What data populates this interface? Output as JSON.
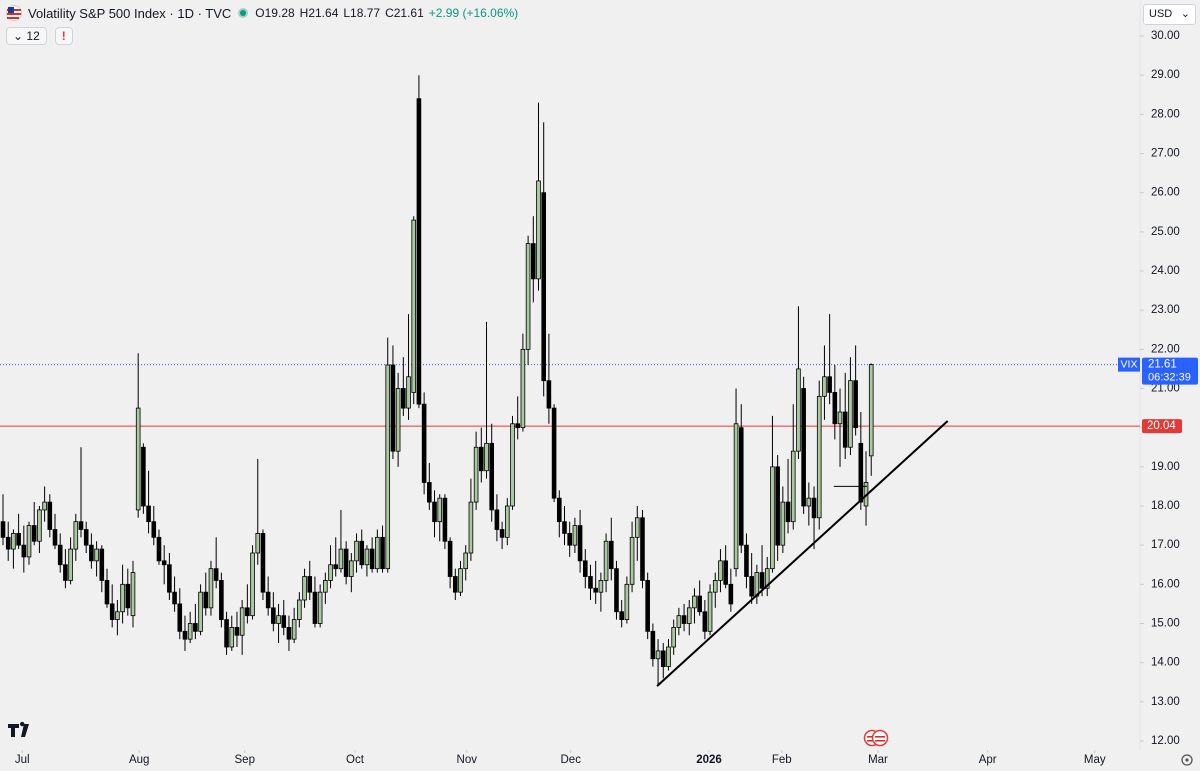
{
  "chart_data": {
    "type": "candlestick",
    "title": "Volatility S&P 500 Index · 1D · TVC",
    "legend": [
      "O19.28",
      "H21.64",
      "L18.77",
      "C21.61",
      "+2.99 (+16.06%)"
    ],
    "indicator_count": 12,
    "currency": "USD",
    "countdown": "06:32:39",
    "xlim": [
      -0.58,
      218.7
    ],
    "ylim": [
      11.77,
      30.92
    ],
    "xticks": [
      {
        "value": 3.7,
        "label": "Jul"
      },
      {
        "value": 26.2,
        "label": "Aug"
      },
      {
        "value": 46.5,
        "label": "Sep"
      },
      {
        "value": 67.7,
        "label": "Oct"
      },
      {
        "value": 89.2,
        "label": "Nov"
      },
      {
        "value": 109.2,
        "label": "Dec"
      },
      {
        "value": 135.8,
        "label": "2026"
      },
      {
        "value": 149.8,
        "label": "Feb"
      },
      {
        "value": 168.3,
        "label": "Mar"
      },
      {
        "value": 189.4,
        "label": "Apr"
      },
      {
        "value": 210,
        "label": "May"
      }
    ],
    "yticks": [
      {
        "value": 12,
        "label": "12.00"
      },
      {
        "value": 13,
        "label": "13.00"
      },
      {
        "value": 14,
        "label": "14.00"
      },
      {
        "value": 15,
        "label": "15.00"
      },
      {
        "value": 16,
        "label": "16.00"
      },
      {
        "value": 17,
        "label": "17.00"
      },
      {
        "value": 18,
        "label": "18.00"
      },
      {
        "value": 19,
        "label": "19.00"
      },
      {
        "value": 20,
        "label": "20.00"
      },
      {
        "value": 21,
        "label": "21.00"
      },
      {
        "value": 22,
        "label": "22.00"
      },
      {
        "value": 23,
        "label": "23.00"
      },
      {
        "value": 24,
        "label": "24.00"
      },
      {
        "value": 25,
        "label": "25.00"
      },
      {
        "value": 26,
        "label": "26.00"
      },
      {
        "value": 27,
        "label": "27.00"
      },
      {
        "value": 28,
        "label": "28.00"
      },
      {
        "value": 29,
        "label": "29.00"
      },
      {
        "value": 30,
        "label": "30.00"
      }
    ],
    "hline": {
      "value": 20.04,
      "color": "#e53935"
    },
    "last_price_color": "#2962ff",
    "trendline": {
      "x": [
        125.8,
        181.7
      ],
      "y": [
        13.4,
        20.17
      ],
      "color": "#000000"
    },
    "segment": {
      "x": [
        159.8,
        166.2
      ],
      "y": [
        18.5,
        18.5
      ],
      "color": "#000000"
    },
    "series": [
      {
        "name": "VIX",
        "up_color": "#a9c9a0",
        "down_color": "#000000",
        "values": [
          [
            17.6,
            18.3,
            17.0,
            17.2
          ],
          [
            17.2,
            17.6,
            16.6,
            16.9
          ],
          [
            16.9,
            17.4,
            16.4,
            17.3
          ],
          [
            17.3,
            17.8,
            16.9,
            17.0
          ],
          [
            17.0,
            17.5,
            16.3,
            16.7
          ],
          [
            16.7,
            17.6,
            16.5,
            17.5
          ],
          [
            17.5,
            18.1,
            17.0,
            17.1
          ],
          [
            17.1,
            18.0,
            16.8,
            17.9
          ],
          [
            17.9,
            18.5,
            17.6,
            18.1
          ],
          [
            18.1,
            18.3,
            17.2,
            17.4
          ],
          [
            17.4,
            17.8,
            16.9,
            17.0
          ],
          [
            17.0,
            17.3,
            16.3,
            16.5
          ],
          [
            16.5,
            16.9,
            15.9,
            16.1
          ],
          [
            16.1,
            17.2,
            16.0,
            16.9
          ],
          [
            16.9,
            17.8,
            16.6,
            17.6
          ],
          [
            17.6,
            19.5,
            17.2,
            17.4
          ],
          [
            17.4,
            17.6,
            16.8,
            17.0
          ],
          [
            17.0,
            17.3,
            16.4,
            16.6
          ],
          [
            16.6,
            17.1,
            16.2,
            16.9
          ],
          [
            16.9,
            17.0,
            15.8,
            16.1
          ],
          [
            16.1,
            16.4,
            15.4,
            15.5
          ],
          [
            15.5,
            16.0,
            14.9,
            15.1
          ],
          [
            15.1,
            15.6,
            14.7,
            15.3
          ],
          [
            15.3,
            16.5,
            15.0,
            16.0
          ],
          [
            16.0,
            16.4,
            15.2,
            15.4
          ],
          [
            15.2,
            16.6,
            14.9,
            16.3
          ],
          [
            17.9,
            21.9,
            17.7,
            20.5
          ],
          [
            19.5,
            19.6,
            17.8,
            18.0
          ],
          [
            18.0,
            18.9,
            17.3,
            17.6
          ],
          [
            17.6,
            18.0,
            17.0,
            17.2
          ],
          [
            17.2,
            17.4,
            16.5,
            16.6
          ],
          [
            16.6,
            17.0,
            16.0,
            16.5
          ],
          [
            16.5,
            16.8,
            15.6,
            15.8
          ],
          [
            15.8,
            16.2,
            15.3,
            15.5
          ],
          [
            15.5,
            15.9,
            14.6,
            14.8
          ],
          [
            14.8,
            15.2,
            14.3,
            14.6
          ],
          [
            14.6,
            15.3,
            14.5,
            15.0
          ],
          [
            15.0,
            15.5,
            14.6,
            14.8
          ],
          [
            14.8,
            16.0,
            14.7,
            15.8
          ],
          [
            15.8,
            16.3,
            15.2,
            15.4
          ],
          [
            15.4,
            16.6,
            15.2,
            16.4
          ],
          [
            16.4,
            17.2,
            15.9,
            16.1
          ],
          [
            16.1,
            16.3,
            14.9,
            15.1
          ],
          [
            15.1,
            15.3,
            14.2,
            14.4
          ],
          [
            14.4,
            15.2,
            14.3,
            14.9
          ],
          [
            14.9,
            15.3,
            14.4,
            14.7
          ],
          [
            14.7,
            15.6,
            14.2,
            15.4
          ],
          [
            15.4,
            16.0,
            15.0,
            15.2
          ],
          [
            15.2,
            17.0,
            15.1,
            16.8
          ],
          [
            16.8,
            19.2,
            16.5,
            17.3
          ],
          [
            17.3,
            17.4,
            15.6,
            15.8
          ],
          [
            15.8,
            16.2,
            15.2,
            15.4
          ],
          [
            15.4,
            15.8,
            14.8,
            15.0
          ],
          [
            15.0,
            15.5,
            14.5,
            15.2
          ],
          [
            15.2,
            15.6,
            14.7,
            14.9
          ],
          [
            14.9,
            15.2,
            14.3,
            14.6
          ],
          [
            14.6,
            15.4,
            14.5,
            15.1
          ],
          [
            15.1,
            15.8,
            14.9,
            15.6
          ],
          [
            15.6,
            16.4,
            15.4,
            16.2
          ],
          [
            16.2,
            16.6,
            15.6,
            15.8
          ],
          [
            15.8,
            16.2,
            14.9,
            15.0
          ],
          [
            15.0,
            16.0,
            14.9,
            15.8
          ],
          [
            15.8,
            16.3,
            15.5,
            16.1
          ],
          [
            16.1,
            17.0,
            15.9,
            16.5
          ],
          [
            16.5,
            17.2,
            16.2,
            16.4
          ],
          [
            16.4,
            17.9,
            16.3,
            16.9
          ],
          [
            16.9,
            17.1,
            16.0,
            16.2
          ],
          [
            16.2,
            16.8,
            15.8,
            16.6
          ],
          [
            16.6,
            17.3,
            16.3,
            17.1
          ],
          [
            17.1,
            17.4,
            16.4,
            16.5
          ],
          [
            16.5,
            17.0,
            16.2,
            16.9
          ],
          [
            16.9,
            17.2,
            16.3,
            16.4
          ],
          [
            16.4,
            17.4,
            16.3,
            17.2
          ],
          [
            17.2,
            17.5,
            16.3,
            16.4
          ],
          [
            16.4,
            22.3,
            16.3,
            21.6
          ],
          [
            21.6,
            22.1,
            19.2,
            19.4
          ],
          [
            19.4,
            21.4,
            19.0,
            21.0
          ],
          [
            21.0,
            21.8,
            20.3,
            20.5
          ],
          [
            20.5,
            22.9,
            20.2,
            21.3
          ],
          [
            20.9,
            25.4,
            20.6,
            25.3
          ],
          [
            28.4,
            29.0,
            20.5,
            20.6
          ],
          [
            20.6,
            20.9,
            18.3,
            18.6
          ],
          [
            18.6,
            19.1,
            17.9,
            18.1
          ],
          [
            18.1,
            18.4,
            17.2,
            17.6
          ],
          [
            17.6,
            18.3,
            17.1,
            18.2
          ],
          [
            18.2,
            18.3,
            16.9,
            17.1
          ],
          [
            17.1,
            17.2,
            15.9,
            16.2
          ],
          [
            16.2,
            16.4,
            15.6,
            15.8
          ],
          [
            15.8,
            16.6,
            15.7,
            16.4
          ],
          [
            16.4,
            17.0,
            16.1,
            16.8
          ],
          [
            16.8,
            18.7,
            16.6,
            18.1
          ],
          [
            18.1,
            19.9,
            17.9,
            19.5
          ],
          [
            19.5,
            20.0,
            18.6,
            18.9
          ],
          [
            18.9,
            22.7,
            18.7,
            19.6
          ],
          [
            19.6,
            20.1,
            17.6,
            17.9
          ],
          [
            17.9,
            18.3,
            17.1,
            17.4
          ],
          [
            17.4,
            17.6,
            16.9,
            17.2
          ],
          [
            17.2,
            18.2,
            17.0,
            18.0
          ],
          [
            18.0,
            20.3,
            17.9,
            20.1
          ],
          [
            20.1,
            20.8,
            19.7,
            20.0
          ],
          [
            20.0,
            22.4,
            19.9,
            22.0
          ],
          [
            22.0,
            24.9,
            21.6,
            24.7
          ],
          [
            24.7,
            25.4,
            23.2,
            23.8
          ],
          [
            23.8,
            28.3,
            23.5,
            26.3
          ],
          [
            26.0,
            27.8,
            20.8,
            21.2
          ],
          [
            21.2,
            22.4,
            20.1,
            20.5
          ],
          [
            20.5,
            20.6,
            18.1,
            18.2
          ],
          [
            18.2,
            18.4,
            17.2,
            17.6
          ],
          [
            17.6,
            18.0,
            17.0,
            17.3
          ],
          [
            17.3,
            17.6,
            16.7,
            17.0
          ],
          [
            17.0,
            17.7,
            16.8,
            17.5
          ],
          [
            17.5,
            17.9,
            16.3,
            16.6
          ],
          [
            16.6,
            16.9,
            15.9,
            16.2
          ],
          [
            16.2,
            16.5,
            15.6,
            15.9
          ],
          [
            15.9,
            16.6,
            15.5,
            15.8
          ],
          [
            15.8,
            16.3,
            15.3,
            16.1
          ],
          [
            16.1,
            17.3,
            15.8,
            17.1
          ],
          [
            17.1,
            17.7,
            16.1,
            16.4
          ],
          [
            16.4,
            16.6,
            15.1,
            15.3
          ],
          [
            15.3,
            15.6,
            14.9,
            15.1
          ],
          [
            15.1,
            16.2,
            15.0,
            16.0
          ],
          [
            16.0,
            17.6,
            15.8,
            17.2
          ],
          [
            17.2,
            18.0,
            16.6,
            17.7
          ],
          [
            17.7,
            17.9,
            15.9,
            16.1
          ],
          [
            16.1,
            16.3,
            14.6,
            14.8
          ],
          [
            14.8,
            15.0,
            13.9,
            14.1
          ],
          [
            14.1,
            14.6,
            13.4,
            14.3
          ],
          [
            14.3,
            14.5,
            13.6,
            13.9
          ],
          [
            13.9,
            14.6,
            13.8,
            14.4
          ],
          [
            14.4,
            15.1,
            14.2,
            14.9
          ],
          [
            14.9,
            15.4,
            14.7,
            15.2
          ],
          [
            15.2,
            15.5,
            14.8,
            15.0
          ],
          [
            15.0,
            15.6,
            14.7,
            15.4
          ],
          [
            15.4,
            15.9,
            15.0,
            15.7
          ],
          [
            15.7,
            16.1,
            15.2,
            15.3
          ],
          [
            15.3,
            15.6,
            14.6,
            14.8
          ],
          [
            14.8,
            16.0,
            14.7,
            15.8
          ],
          [
            15.8,
            16.3,
            15.4,
            16.1
          ],
          [
            16.1,
            16.9,
            15.8,
            16.6
          ],
          [
            16.6,
            17.0,
            15.9,
            16.0
          ],
          [
            16.0,
            16.4,
            15.3,
            15.5
          ],
          [
            16.4,
            21.0,
            16.2,
            20.1
          ],
          [
            20.0,
            20.6,
            16.8,
            17.0
          ],
          [
            17.0,
            17.3,
            15.9,
            16.2
          ],
          [
            16.2,
            16.8,
            15.5,
            15.7
          ],
          [
            15.7,
            16.5,
            15.5,
            16.3
          ],
          [
            16.3,
            17.0,
            15.7,
            15.9
          ],
          [
            15.9,
            16.7,
            15.7,
            16.4
          ],
          [
            16.4,
            20.3,
            16.3,
            19.0
          ],
          [
            19.0,
            19.3,
            16.6,
            17.0
          ],
          [
            17.0,
            18.5,
            16.8,
            18.1
          ],
          [
            18.1,
            19.2,
            17.3,
            17.6
          ],
          [
            17.6,
            20.6,
            17.4,
            19.4
          ],
          [
            19.4,
            23.1,
            19.2,
            21.5
          ],
          [
            21.0,
            21.3,
            17.8,
            18.0
          ],
          [
            18.0,
            18.6,
            17.5,
            18.2
          ],
          [
            18.2,
            18.5,
            16.9,
            17.7
          ],
          [
            17.7,
            21.2,
            17.4,
            20.8
          ],
          [
            20.8,
            22.1,
            20.2,
            21.3
          ],
          [
            21.3,
            22.9,
            20.6,
            20.9
          ],
          [
            20.9,
            21.6,
            19.7,
            20.1
          ],
          [
            20.1,
            21.0,
            19.0,
            20.4
          ],
          [
            20.4,
            21.4,
            19.2,
            19.5
          ],
          [
            19.5,
            21.8,
            19.3,
            21.2
          ],
          [
            21.2,
            22.1,
            19.8,
            20.0
          ],
          [
            19.6,
            20.4,
            17.9,
            18.1
          ],
          [
            18.0,
            19.4,
            17.5,
            18.6
          ],
          [
            19.28,
            21.64,
            18.77,
            21.61
          ]
        ]
      }
    ]
  }
}
